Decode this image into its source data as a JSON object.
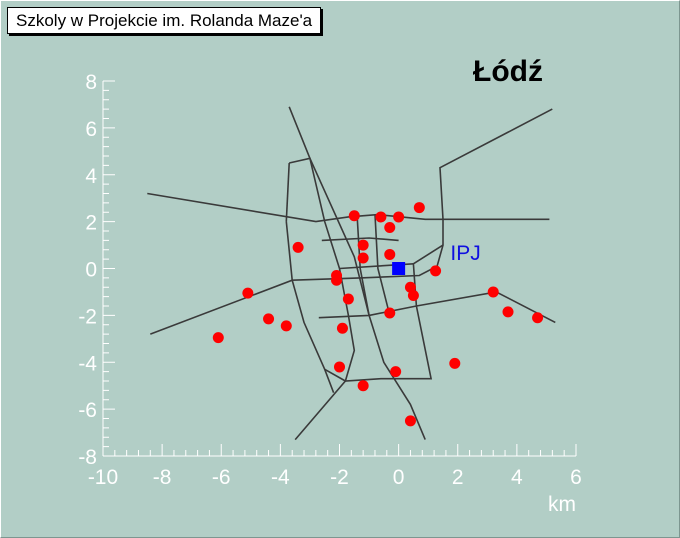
{
  "window_title": "Szkoly w Projekcie im. Rolanda Maze'a",
  "chart_data": {
    "type": "scatter",
    "title": "Szkoly w Projekcie im. Rolanda Maze'a",
    "subtitle": "Łódź",
    "xlabel": "km",
    "ylabel": "",
    "xlim": [
      -10,
      6
    ],
    "ylim": [
      -8,
      8
    ],
    "xticks": [
      -10,
      -8,
      -6,
      -4,
      -2,
      0,
      2,
      4,
      6
    ],
    "yticks": [
      -8,
      -6,
      -4,
      -2,
      0,
      2,
      4,
      6,
      8
    ],
    "grid": false,
    "colors": {
      "background": "#b2cec6",
      "axis": "#ffffff",
      "schools": "#ff0000",
      "ipj": "#0000ff",
      "roads": "#3a3a3a"
    },
    "series": [
      {
        "marker": "circle",
        "color": "#ff0000",
        "points": [
          [
            -6.1,
            -2.95
          ],
          [
            -5.1,
            -1.05
          ],
          [
            -4.4,
            -2.15
          ],
          [
            -3.8,
            -2.45
          ],
          [
            -3.4,
            0.9
          ],
          [
            -2.1,
            -0.3
          ],
          [
            -2.1,
            -0.5
          ],
          [
            -1.9,
            -2.55
          ],
          [
            -1.7,
            -1.3
          ],
          [
            -1.5,
            2.25
          ],
          [
            -1.2,
            1.0
          ],
          [
            -1.2,
            0.45
          ],
          [
            -2.0,
            -4.2
          ],
          [
            -1.2,
            -5.0
          ],
          [
            -0.6,
            2.2
          ],
          [
            -0.3,
            1.75
          ],
          [
            0.0,
            2.2
          ],
          [
            -0.3,
            0.6
          ],
          [
            0.4,
            -0.8
          ],
          [
            0.5,
            -1.15
          ],
          [
            0.7,
            2.6
          ],
          [
            1.25,
            -0.1
          ],
          [
            -0.3,
            -1.9
          ],
          [
            -0.1,
            -4.4
          ],
          [
            0.4,
            -6.5
          ],
          [
            1.9,
            -4.05
          ],
          [
            3.2,
            -1.0
          ],
          [
            3.7,
            -1.85
          ],
          [
            4.7,
            -2.1
          ]
        ]
      },
      {
        "name": "IPJ",
        "marker": "square",
        "color": "#0000ff",
        "points": [
          [
            0.0,
            0.0
          ]
        ]
      }
    ],
    "annotations": [
      {
        "text": "IPJ",
        "x": 1.75,
        "y": 0.7
      }
    ],
    "roads": [
      [
        [
          -3.7,
          6.9
        ],
        [
          -3.0,
          4.7
        ],
        [
          -1.5,
          0.5
        ],
        [
          -1.0,
          -2.0
        ],
        [
          -0.5,
          -4.0
        ],
        [
          0.4,
          -5.8
        ],
        [
          0.9,
          -7.3
        ]
      ],
      [
        [
          -3.7,
          4.5
        ],
        [
          -3.0,
          4.7
        ],
        [
          -2.5,
          2.0
        ],
        [
          -2.0,
          0.0
        ],
        [
          -1.7,
          -2.0
        ],
        [
          -1.5,
          -3.5
        ],
        [
          -1.8,
          -4.8
        ],
        [
          -3.5,
          -7.3
        ]
      ],
      [
        [
          -3.8,
          2.0
        ],
        [
          -3.7,
          4.5
        ]
      ],
      [
        [
          -3.8,
          2.0
        ],
        [
          -3.6,
          -0.5
        ],
        [
          -3.2,
          -2.3
        ],
        [
          -2.5,
          -4.3
        ],
        [
          -2.2,
          -5.3
        ]
      ],
      [
        [
          -8.5,
          3.2
        ],
        [
          -2.8,
          2.0
        ],
        [
          -1.7,
          2.2
        ],
        [
          -0.7,
          2.3
        ],
        [
          0.9,
          2.1
        ],
        [
          5.1,
          2.1
        ]
      ],
      [
        [
          -8.4,
          -2.8
        ],
        [
          -3.6,
          -0.5
        ],
        [
          -1.3,
          -0.4
        ],
        [
          0.7,
          -0.3
        ],
        [
          1.3,
          0.1
        ],
        [
          1.5,
          1.0
        ],
        [
          1.5,
          2.1
        ],
        [
          1.4,
          4.3
        ],
        [
          5.2,
          6.8
        ]
      ],
      [
        [
          -2.7,
          -2.1
        ],
        [
          -1.0,
          -2.0
        ],
        [
          0.6,
          -1.6
        ],
        [
          3.3,
          -1.0
        ],
        [
          5.3,
          -2.3
        ]
      ],
      [
        [
          -2.5,
          -4.3
        ],
        [
          -1.8,
          -4.8
        ],
        [
          -0.6,
          -4.7
        ],
        [
          1.1,
          -4.7
        ],
        [
          0.6,
          -1.6
        ],
        [
          0.5,
          0.2
        ],
        [
          1.5,
          1.0
        ]
      ],
      [
        [
          -2.6,
          1.2
        ],
        [
          -1.0,
          1.3
        ],
        [
          0.0,
          1.2
        ]
      ],
      [
        [
          -1.4,
          2.2
        ],
        [
          -1.3,
          0.0
        ],
        [
          -1.0,
          -2.0
        ]
      ],
      [
        [
          -0.8,
          2.3
        ],
        [
          -0.7,
          0.0
        ],
        [
          -0.3,
          -2.0
        ]
      ],
      [
        [
          -2.0,
          0.0
        ],
        [
          0.5,
          0.2
        ]
      ]
    ]
  }
}
